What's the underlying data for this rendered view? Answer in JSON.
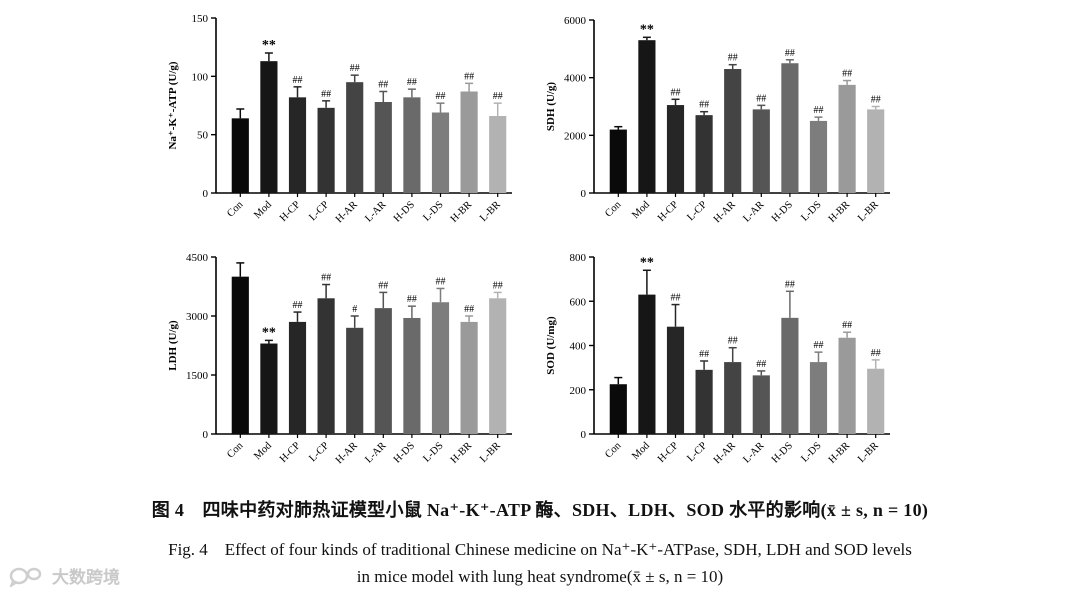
{
  "caption": {
    "cn": "图 4　四味中药对肺热证模型小鼠 Na⁺-K⁺-ATP 酶、SDH、LDH、SOD 水平的影响(x̄ ± s, n = 10)",
    "en_line1": "Fig. 4　Effect of four kinds of traditional Chinese medicine on Na⁺-K⁺-ATPase, SDH, LDH and SOD levels",
    "en_line2": "in mice model with lung heat syndrome(x̄ ± s, n = 10)"
  },
  "watermark": {
    "text": "大数跨境",
    "icon": "chat-bubble-logo-icon"
  },
  "chart_data": [
    {
      "id": "naka",
      "type": "bar",
      "ylabel": "Na⁺-K⁺-ATP (U/g)",
      "ylim": [
        0,
        150
      ],
      "yticks": [
        0,
        50,
        100,
        150
      ],
      "categories": [
        "Con",
        "Mod",
        "H-CP",
        "L-CP",
        "H-AR",
        "L-AR",
        "H-DS",
        "L-DS",
        "H-BR",
        "L-BR"
      ],
      "values": [
        64,
        113,
        82,
        73,
        95,
        78,
        82,
        69,
        87,
        66
      ],
      "errors": [
        8,
        7,
        9,
        6,
        6,
        9,
        7,
        8,
        7,
        11
      ],
      "labels": [
        "",
        "**",
        "##",
        "##",
        "##",
        "##",
        "##",
        "##",
        "##",
        "##"
      ]
    },
    {
      "id": "sdh",
      "type": "bar",
      "ylabel": "SDH (U/g)",
      "ylim": [
        0,
        6000
      ],
      "yticks": [
        0,
        2000,
        4000,
        6000
      ],
      "categories": [
        "Con",
        "Mod",
        "H-CP",
        "L-CP",
        "H-AR",
        "L-AR",
        "H-DS",
        "L-DS",
        "H-BR",
        "L-BR"
      ],
      "values": [
        2200,
        5300,
        3050,
        2700,
        4300,
        2900,
        4500,
        2500,
        3750,
        2900
      ],
      "errors": [
        100,
        100,
        200,
        120,
        150,
        140,
        120,
        130,
        150,
        100
      ],
      "labels": [
        "",
        "**",
        "##",
        "##",
        "##",
        "##",
        "##",
        "##",
        "##",
        "##"
      ]
    },
    {
      "id": "ldh",
      "type": "bar",
      "ylabel": "LDH (U/g)",
      "ylim": [
        0,
        4500
      ],
      "yticks": [
        0,
        1500,
        3000,
        4500
      ],
      "categories": [
        "Con",
        "Mod",
        "H-CP",
        "L-CP",
        "H-AR",
        "L-AR",
        "H-DS",
        "L-DS",
        "H-BR",
        "L-BR"
      ],
      "values": [
        4000,
        2300,
        2850,
        3450,
        2700,
        3200,
        2950,
        3350,
        2850,
        3450
      ],
      "errors": [
        350,
        80,
        250,
        350,
        300,
        400,
        300,
        350,
        150,
        150
      ],
      "labels": [
        "",
        "**",
        "##",
        "##",
        "#",
        "##",
        "##",
        "##",
        "##",
        "##"
      ]
    },
    {
      "id": "sod",
      "type": "bar",
      "ylabel": "SOD (U/mg)",
      "ylim": [
        0,
        800
      ],
      "yticks": [
        0,
        200,
        400,
        600,
        800
      ],
      "categories": [
        "Con",
        "Mod",
        "H-CP",
        "L-CP",
        "H-AR",
        "L-AR",
        "H-DS",
        "L-DS",
        "H-BR",
        "L-BR"
      ],
      "values": [
        225,
        630,
        485,
        290,
        325,
        265,
        525,
        325,
        435,
        295
      ],
      "errors": [
        30,
        110,
        100,
        40,
        65,
        20,
        120,
        45,
        25,
        40
      ],
      "labels": [
        "",
        "**",
        "##",
        "##",
        "##",
        "##",
        "##",
        "##",
        "##",
        "##"
      ]
    }
  ],
  "bar_colors": [
    "#0a0a0a",
    "#161616",
    "#262626",
    "#333333",
    "#444444",
    "#555555",
    "#6a6a6a",
    "#7d7d7d",
    "#9a9a9a",
    "#b2b2b2"
  ]
}
